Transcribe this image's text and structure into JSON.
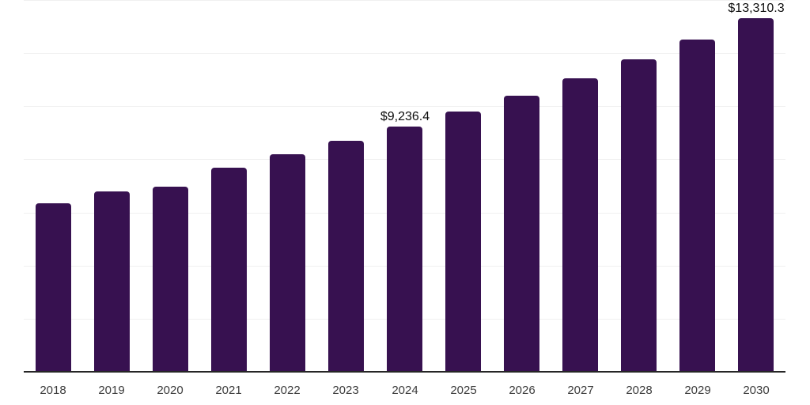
{
  "chart_data": {
    "type": "bar",
    "categories": [
      "2018",
      "2019",
      "2020",
      "2021",
      "2022",
      "2023",
      "2024",
      "2025",
      "2026",
      "2027",
      "2028",
      "2029",
      "2030"
    ],
    "values": [
      6330,
      6800,
      6970,
      7700,
      8200,
      8700,
      9236.4,
      9810,
      10390,
      11060,
      11760,
      12510,
      13310.3
    ],
    "annotations": [
      {
        "category": "2024",
        "text": "$9,236.4"
      },
      {
        "category": "2030",
        "text": "$13,310.3"
      }
    ],
    "ylim": [
      0,
      14000
    ],
    "gridline_step": 2000,
    "grid": "horizontal-only",
    "legend": "none",
    "y_axis_labels": "none",
    "colors": {
      "bar": "#371150",
      "gridline": "#f0f0f0",
      "axis_line": "#262626",
      "x_label_text": "#3c3c3c",
      "value_label_text": "#0d0d0d",
      "background": "#ffffff"
    }
  }
}
